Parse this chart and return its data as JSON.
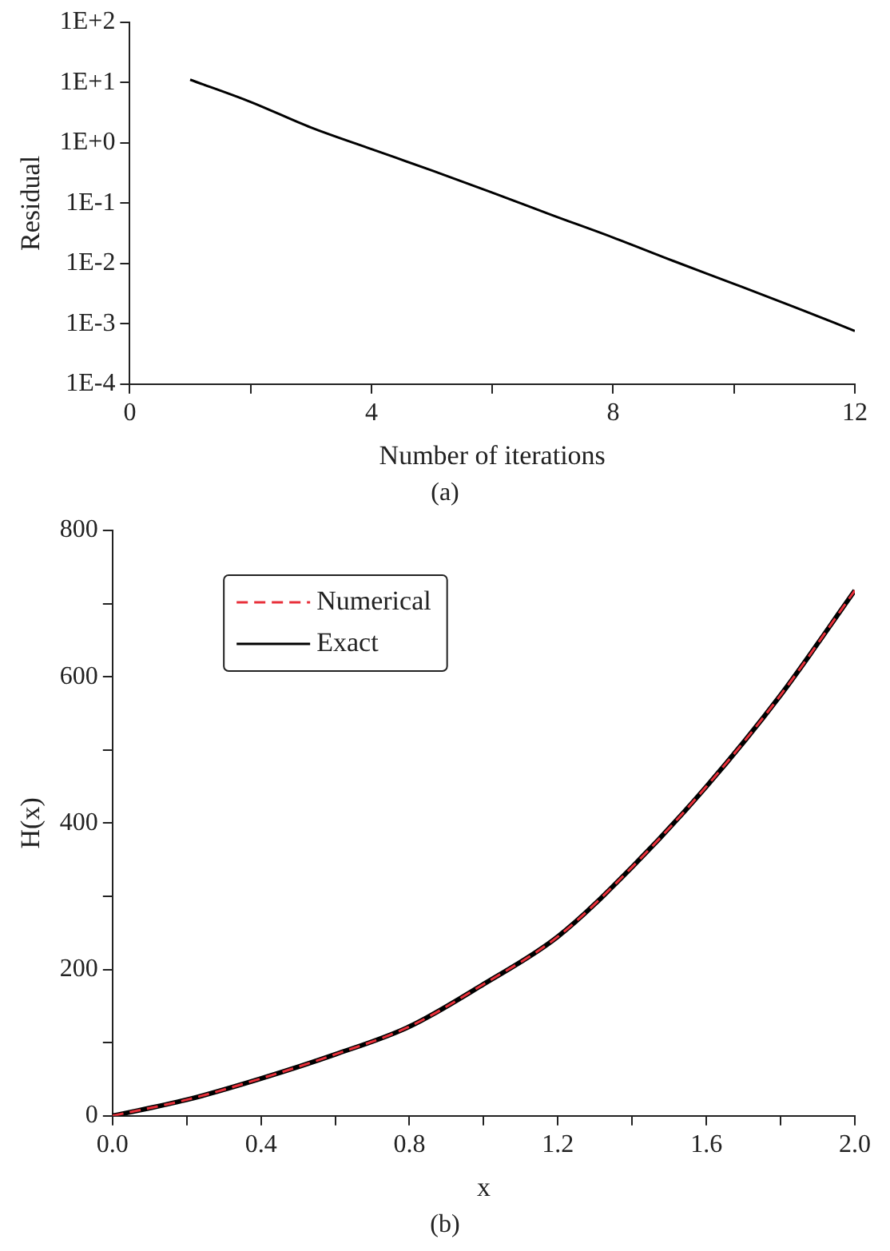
{
  "chart_data": [
    {
      "type": "line",
      "xlabel": "Number of iterations",
      "ylabel": "Residual",
      "annotations": [
        "(a)"
      ],
      "log": "y",
      "grid": false,
      "legend": false,
      "marker": "none",
      "line_style": "solid",
      "xlim": [
        0,
        12
      ],
      "xticks": [
        0,
        {
          "value": 2,
          "label": null
        },
        4,
        {
          "value": 6,
          "label": null
        },
        8,
        {
          "value": 10,
          "label": null
        },
        12
      ],
      "ylim": [
        0.0001,
        100
      ],
      "yticks": [
        {
          "value": 0.0001,
          "label": "1E-4"
        },
        {
          "value": 0.001,
          "label": "1E-3"
        },
        {
          "value": 0.01,
          "label": "1E-2"
        },
        {
          "value": 0.1,
          "label": "1E-1"
        },
        {
          "value": 1,
          "label": "1E+0"
        },
        {
          "value": 10,
          "label": "1E+1"
        },
        {
          "value": 100,
          "label": "1E+2"
        }
      ],
      "x": [
        1,
        2,
        3,
        4,
        5,
        6,
        7,
        8,
        9,
        10,
        11,
        12
      ],
      "series": [
        {
          "color": "#000000",
          "values": [
            11.2,
            4.8,
            1.8,
            0.79,
            0.35,
            0.15,
            0.063,
            0.027,
            0.011,
            0.0046,
            0.0019,
            0.00076
          ]
        }
      ]
    },
    {
      "type": "line",
      "xlabel": "x",
      "ylabel": "H(x)",
      "annotations": [
        "(b)"
      ],
      "grid": false,
      "legend": "top left",
      "marker": "none",
      "xlim": [
        0,
        2
      ],
      "xticks": [
        {
          "value": 0,
          "label": "0.0"
        },
        {
          "value": 0.2,
          "label": null
        },
        {
          "value": 0.4,
          "label": "0.4"
        },
        {
          "value": 0.6,
          "label": null
        },
        {
          "value": 0.8,
          "label": "0.8"
        },
        {
          "value": 1,
          "label": null
        },
        {
          "value": 1.2,
          "label": "1.2"
        },
        {
          "value": 1.4,
          "label": null
        },
        {
          "value": 1.6,
          "label": "1.6"
        },
        {
          "value": 1.8,
          "label": null
        },
        {
          "value": 2,
          "label": "2.0"
        }
      ],
      "ylim": [
        0,
        800
      ],
      "yticks": [
        0,
        {
          "value": 100,
          "label": null
        },
        200,
        {
          "value": 300,
          "label": null
        },
        400,
        {
          "value": 500,
          "label": null
        },
        600,
        {
          "value": 700,
          "label": null
        },
        800
      ],
      "x": [
        0,
        0.2,
        0.4,
        0.6,
        0.8,
        1,
        1.2,
        1.4,
        1.6,
        1.8,
        2
      ],
      "series": [
        {
          "name": "Numerical",
          "color": "#e8303a",
          "line_style": "dashed",
          "values": [
            0,
            22,
            51,
            84,
            122,
            180,
            245,
            340,
            450,
            575,
            718
          ]
        },
        {
          "name": "Exact",
          "color": "#000000",
          "line_style": "solid",
          "values": [
            0,
            22,
            51,
            84,
            122,
            180,
            245,
            340,
            450,
            575,
            718
          ]
        }
      ]
    }
  ]
}
